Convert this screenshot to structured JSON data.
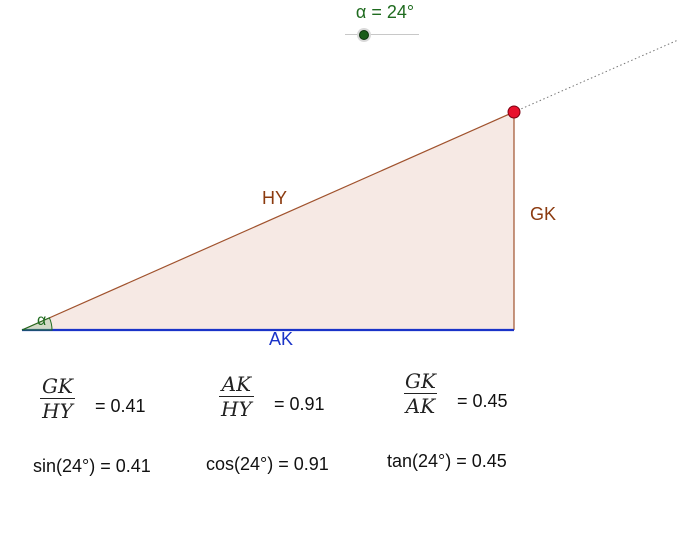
{
  "slider": {
    "label": "α = 24°",
    "value_deg": 24,
    "knob_color": "#1a5c1a"
  },
  "triangle": {
    "angle_label": "α",
    "hypotenuse_label": "HY",
    "opposite_label": "GK",
    "adjacent_label": "AK",
    "colors": {
      "fill": "#f6e9e4",
      "hypotenuse": "#a0522d",
      "opposite": "#a0522d",
      "adjacent": "#1a33c8",
      "angle_arc": "#1f6b1f",
      "vertex_point": "#e8112d",
      "ray": "#777777"
    }
  },
  "ratios": [
    {
      "numerator": "GK",
      "denominator": "HY",
      "value_text": "= 0.41"
    },
    {
      "numerator": "AK",
      "denominator": "HY",
      "value_text": "= 0.91"
    },
    {
      "numerator": "GK",
      "denominator": "AK",
      "value_text": "= 0.45"
    }
  ],
  "trig": [
    {
      "text": "sin(24°) = 0.41"
    },
    {
      "text": "cos(24°) = 0.91"
    },
    {
      "text": "tan(24°) = 0.45"
    }
  ]
}
